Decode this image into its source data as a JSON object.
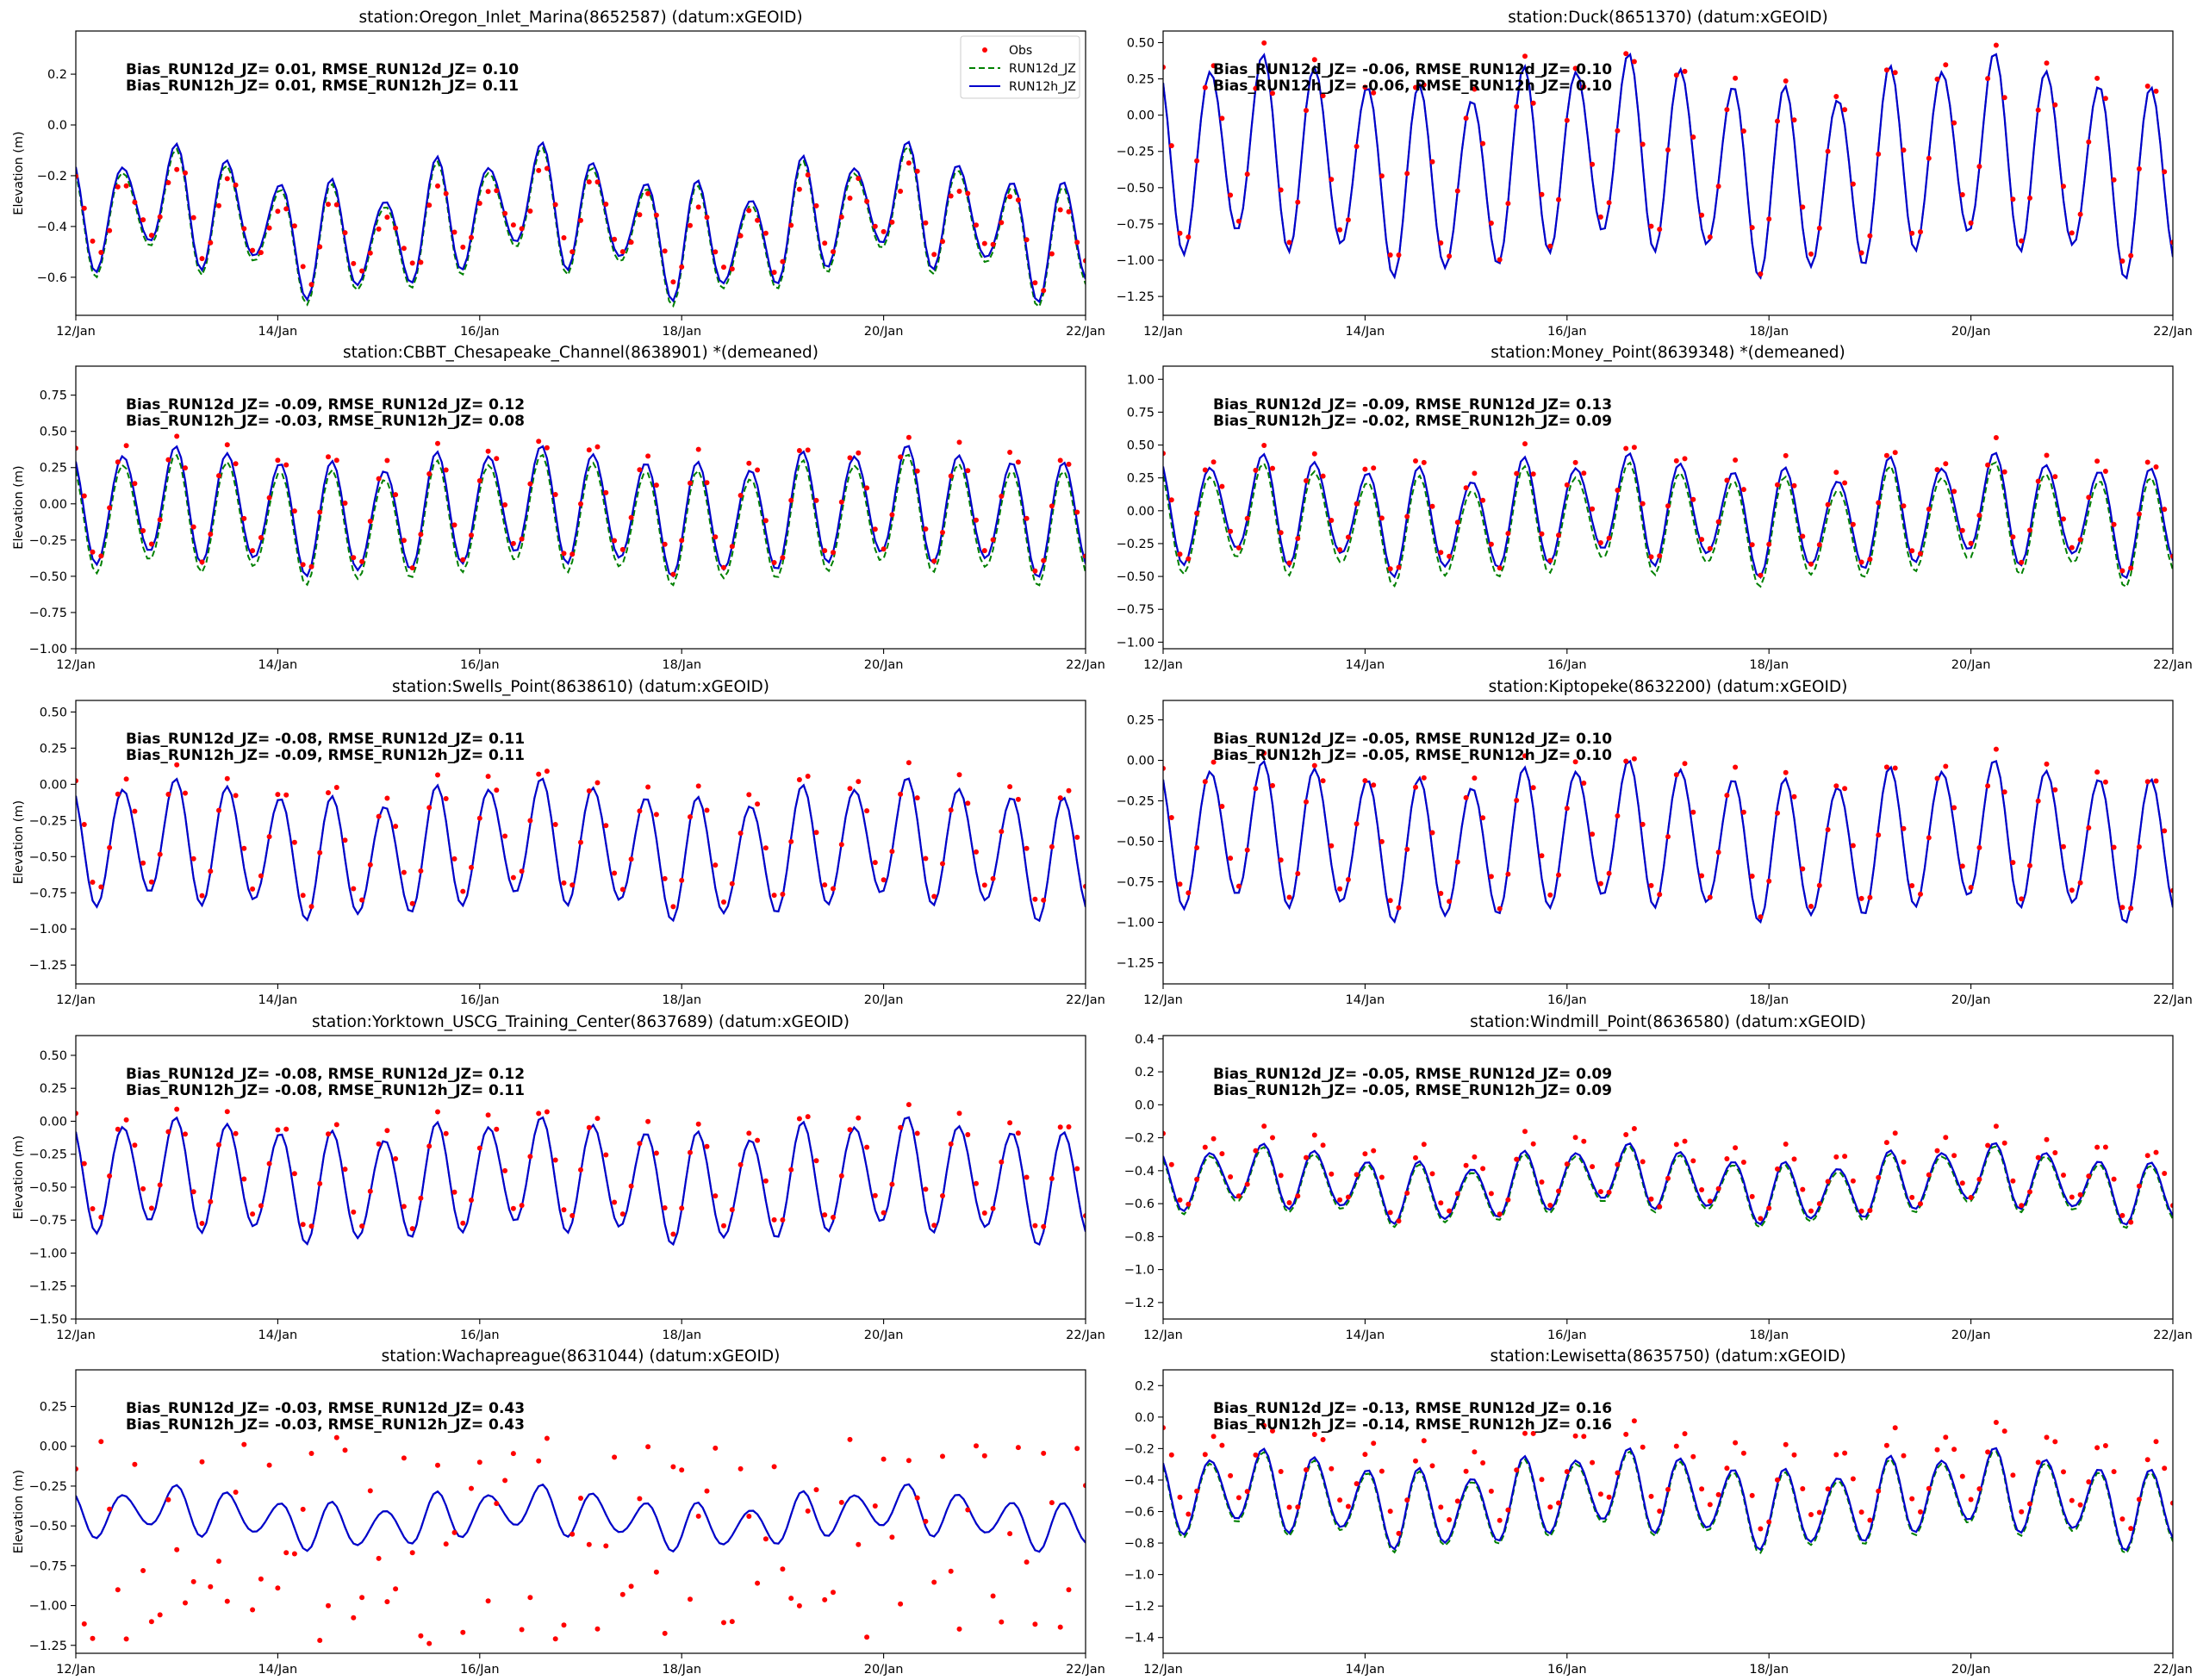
{
  "chart_data": [
    {
      "type": "line",
      "title": "station:Oregon_Inlet_Marina(8652587) (datum:xGEOID)",
      "ylabel": "Elevation (m)",
      "ylim": [
        -0.75,
        0.37
      ],
      "yticks": [
        -0.6,
        -0.4,
        -0.2,
        0.0,
        0.2
      ],
      "ytick_labels": [
        "−0.6",
        "−0.4",
        "−0.2",
        "0.0",
        "0.2"
      ],
      "stats_line1": "Bias_RUN12d_JZ=  0.01, RMSE_RUN12d_JZ=  0.10",
      "stats_line2": "Bias_RUN12h_JZ=  0.01, RMSE_RUN12h_JZ=  0.11",
      "show_legend": true,
      "model": {
        "mean": -0.38,
        "amp": 0.2,
        "damp": 0.3,
        "noise": 0.08,
        "tilt": 0.0,
        "t0": 12.0,
        "t1": 18.05,
        "gap": [
          0.06,
          0.06
        ],
        "gapRun": 0.02
      },
      "obs": {
        "offset": -0.01,
        "scale": 0.7,
        "noise": 0.06,
        "lag": 0.05
      }
    },
    {
      "type": "line",
      "title": "station:Duck(8651370) (datum:xGEOID)",
      "ylabel": "",
      "ylim": [
        -1.38,
        0.58
      ],
      "yticks": [
        -1.25,
        -1.0,
        -0.75,
        -0.5,
        -0.25,
        0.0,
        0.25,
        0.5
      ],
      "ytick_labels": [
        "−1.25",
        "−1.00",
        "−0.75",
        "−0.50",
        "−0.25",
        "0.00",
        "0.25",
        "0.50"
      ],
      "stats_line1": "Bias_RUN12d_JZ= -0.06, RMSE_RUN12d_JZ=  0.10",
      "stats_line2": "Bias_RUN12h_JZ= -0.06, RMSE_RUN12h_JZ=  0.10",
      "show_legend": false,
      "model": {
        "mean": -0.35,
        "amp": 0.62,
        "damp": 0.12,
        "noise": 0.12,
        "tilt": 0.0,
        "t0": 12.0,
        "t1": 18.55,
        "gap": [
          0.0,
          0.0
        ],
        "gapRun": 0.0
      },
      "obs": {
        "offset": 0.06,
        "scale": 1.0,
        "noise": 0.05,
        "lag": 0.02
      }
    },
    {
      "type": "line",
      "title": "station:CBBT_Chesapeake_Channel(8638901) *(demeaned)",
      "ylabel": "Elevation (m)",
      "ylim": [
        -1.0,
        0.95
      ],
      "yticks": [
        -1.0,
        -0.75,
        -0.5,
        -0.25,
        0.0,
        0.25,
        0.5,
        0.75
      ],
      "ytick_labels": [
        "−1.00",
        "−0.75",
        "−0.50",
        "−0.25",
        "0.00",
        "0.25",
        "0.50",
        "0.75"
      ],
      "stats_line1": "Bias_RUN12d_JZ= -0.09, RMSE_RUN12d_JZ=  0.12",
      "stats_line2": "Bias_RUN12h_JZ= -0.03, RMSE_RUN12h_JZ=  0.08",
      "show_legend": false,
      "model": {
        "mean": -0.05,
        "amp": 0.37,
        "damp": 0.12,
        "noise": 0.06,
        "tilt": 0.0,
        "t0": 12.0,
        "t1": 17.6,
        "gap": [
          0.06,
          0.0
        ],
        "gapRun": 0.06
      },
      "obs": {
        "offset": 0.05,
        "scale": 1.05,
        "noise": 0.05,
        "lag": 0.02
      }
    },
    {
      "type": "line",
      "title": "station:Money_Point(8639348) *(demeaned)",
      "ylabel": "",
      "ylim": [
        -1.05,
        1.1
      ],
      "yticks": [
        -1.0,
        -0.75,
        -0.5,
        -0.25,
        0.0,
        0.25,
        0.5,
        0.75,
        1.0
      ],
      "ytick_labels": [
        "−1.00",
        "−0.75",
        "−0.50",
        "−0.25",
        "0.00",
        "0.25",
        "0.50",
        "0.75",
        "1.00"
      ],
      "stats_line1": "Bias_RUN12d_JZ= -0.09, RMSE_RUN12d_JZ=  0.13",
      "stats_line2": "Bias_RUN12h_JZ= -0.02, RMSE_RUN12h_JZ=  0.09",
      "show_legend": false,
      "model": {
        "mean": -0.03,
        "amp": 0.37,
        "damp": 0.2,
        "noise": 0.06,
        "tilt": 0.0,
        "t0": 12.0,
        "t1": 17.6,
        "gap": [
          0.07,
          0.0
        ],
        "gapRun": 0.07
      },
      "obs": {
        "offset": 0.05,
        "scale": 1.08,
        "noise": 0.05,
        "lag": 0.02
      }
    },
    {
      "type": "line",
      "title": "station:Swells_Point(8638610) (datum:xGEOID)",
      "ylabel": "Elevation (m)",
      "ylim": [
        -1.38,
        0.58
      ],
      "yticks": [
        -1.25,
        -1.0,
        -0.75,
        -0.5,
        -0.25,
        0.0,
        0.25,
        0.5
      ],
      "ytick_labels": [
        "−1.25",
        "−1.00",
        "−0.75",
        "−0.50",
        "−0.25",
        "0.00",
        "0.25",
        "0.50"
      ],
      "stats_line1": "Bias_RUN12d_JZ= -0.08, RMSE_RUN12d_JZ=  0.11",
      "stats_line2": "Bias_RUN12h_JZ= -0.09, RMSE_RUN12h_JZ=  0.11",
      "show_legend": false,
      "model": {
        "mean": -0.45,
        "amp": 0.4,
        "damp": 0.12,
        "noise": 0.07,
        "tilt": 0.0,
        "t0": 12.0,
        "t1": 17.6,
        "gap": [
          0.0,
          0.0
        ],
        "gapRun": 0.0
      },
      "obs": {
        "offset": 0.08,
        "scale": 1.0,
        "noise": 0.05,
        "lag": 0.03
      }
    },
    {
      "type": "line",
      "title": "station:Kiptopeke(8632200) (datum:xGEOID)",
      "ylabel": "",
      "ylim": [
        -1.38,
        0.37
      ],
      "yticks": [
        -1.25,
        -1.0,
        -0.75,
        -0.5,
        -0.25,
        0.0,
        0.25
      ],
      "ytick_labels": [
        "−1.25",
        "−1.00",
        "−0.75",
        "−0.50",
        "−0.25",
        "0.00",
        "0.25"
      ],
      "stats_line1": "Bias_RUN12d_JZ= -0.05, RMSE_RUN12d_JZ=  0.10",
      "stats_line2": "Bias_RUN12h_JZ= -0.05, RMSE_RUN12h_JZ=  0.10",
      "show_legend": false,
      "model": {
        "mean": -0.5,
        "amp": 0.42,
        "damp": 0.1,
        "noise": 0.06,
        "tilt": 0.0,
        "t0": 12.0,
        "t1": 17.6,
        "gap": [
          0.0,
          0.0
        ],
        "gapRun": 0.0
      },
      "obs": {
        "offset": 0.05,
        "scale": 1.0,
        "noise": 0.05,
        "lag": 0.03
      }
    },
    {
      "type": "line",
      "title": "station:Yorktown_USCG_Training_Center(8637689) (datum:xGEOID)",
      "ylabel": "Elevation (m)",
      "ylim": [
        -1.5,
        0.65
      ],
      "yticks": [
        -1.5,
        -1.25,
        -1.0,
        -0.75,
        -0.5,
        -0.25,
        0.0,
        0.25,
        0.5
      ],
      "ytick_labels": [
        "−1.50",
        "−1.25",
        "−1.00",
        "−0.75",
        "−0.50",
        "−0.25",
        "0.00",
        "0.25",
        "0.50"
      ],
      "stats_line1": "Bias_RUN12d_JZ= -0.08, RMSE_RUN12d_JZ=  0.12",
      "stats_line2": "Bias_RUN12h_JZ= -0.08, RMSE_RUN12h_JZ=  0.11",
      "show_legend": false,
      "model": {
        "mean": -0.45,
        "amp": 0.4,
        "damp": 0.12,
        "noise": 0.06,
        "tilt": 0.0,
        "t0": 12.0,
        "t1": 17.6,
        "gap": [
          0.0,
          0.0
        ],
        "gapRun": 0.0
      },
      "obs": {
        "offset": 0.08,
        "scale": 1.0,
        "noise": 0.05,
        "lag": 0.03
      }
    },
    {
      "type": "line",
      "title": "station:Windmill_Point(8636580) (datum:xGEOID)",
      "ylabel": "",
      "ylim": [
        -1.3,
        0.42
      ],
      "yticks": [
        -1.2,
        -1.0,
        -0.8,
        -0.6,
        -0.4,
        -0.2,
        0.0,
        0.2,
        0.4
      ],
      "ytick_labels": [
        "−1.2",
        "−1.0",
        "−0.8",
        "−0.6",
        "−0.4",
        "−0.2",
        "0.0",
        "0.2",
        "0.4"
      ],
      "stats_line1": "Bias_RUN12d_JZ= -0.05, RMSE_RUN12d_JZ=  0.09",
      "stats_line2": "Bias_RUN12h_JZ= -0.05, RMSE_RUN12h_JZ=  0.09",
      "show_legend": false,
      "model": {
        "mean": -0.48,
        "amp": 0.17,
        "damp": 0.2,
        "noise": 0.06,
        "tilt": 0.0,
        "t0": 12.0,
        "t1": 17.6,
        "gap": [
          0.02,
          0.0
        ],
        "gapRun": 0.02
      },
      "obs": {
        "offset": 0.06,
        "scale": 1.2,
        "noise": 0.04,
        "lag": 0.05
      }
    },
    {
      "type": "line",
      "title": "station:Wachapreague(8631044) (datum:xGEOID)",
      "ylabel": "Elevation (m)",
      "ylim": [
        -1.3,
        0.48
      ],
      "yticks": [
        -1.25,
        -1.0,
        -0.75,
        -0.5,
        -0.25,
        0.0,
        0.25
      ],
      "ytick_labels": [
        "−1.25",
        "−1.00",
        "−0.75",
        "−0.50",
        "−0.25",
        "0.00",
        "0.25"
      ],
      "stats_line1": "Bias_RUN12d_JZ= -0.03, RMSE_RUN12d_JZ=  0.43",
      "stats_line2": "Bias_RUN12h_JZ= -0.03, RMSE_RUN12h_JZ=  0.43",
      "show_legend": false,
      "model": {
        "mean": -0.45,
        "amp": 0.13,
        "damp": 0.3,
        "noise": 0.06,
        "tilt": 0.0,
        "t0": 12.0,
        "t1": 17.6,
        "gap": [
          0.0,
          0.0
        ],
        "gapRun": 0.0
      },
      "obs": {
        "offset": -0.15,
        "scale": 5.0,
        "noise": 0.1,
        "lag": 0.15
      }
    },
    {
      "type": "line",
      "title": "station:Lewisetta(8635750) (datum:xGEOID)",
      "ylabel": "",
      "ylim": [
        -1.5,
        0.3
      ],
      "yticks": [
        -1.4,
        -1.2,
        -1.0,
        -0.8,
        -0.6,
        -0.4,
        -0.2,
        0.0,
        0.2
      ],
      "ytick_labels": [
        "−1.4",
        "−1.2",
        "−1.0",
        "−0.8",
        "−0.6",
        "−0.4",
        "−0.2",
        "0.0",
        "0.2"
      ],
      "stats_line1": "Bias_RUN12d_JZ= -0.13, RMSE_RUN12d_JZ=  0.16",
      "stats_line2": "Bias_RUN12h_JZ= -0.14, RMSE_RUN12h_JZ=  0.16",
      "show_legend": false,
      "model": {
        "mean": -0.52,
        "amp": 0.23,
        "damp": 0.2,
        "noise": 0.07,
        "tilt": 0.0,
        "t0": 12.0,
        "t1": 17.6,
        "gap": [
          0.02,
          0.0
        ],
        "gapRun": 0.02
      },
      "obs": {
        "offset": 0.15,
        "scale": 1.1,
        "noise": 0.04,
        "lag": 0.08
      }
    }
  ],
  "x_axis": {
    "xlim": [
      12,
      22
    ],
    "ticks": [
      12,
      14,
      16,
      18,
      20,
      22
    ],
    "tick_labels": [
      "12/Jan",
      "14/Jan",
      "16/Jan",
      "18/Jan",
      "20/Jan",
      "22/Jan"
    ]
  },
  "legend": {
    "entries": [
      {
        "label": "Obs",
        "color": "#ff0000",
        "style": "dots"
      },
      {
        "label": "RUN12d_JZ",
        "color": "#008000",
        "style": "dashed"
      },
      {
        "label": "RUN12h_JZ",
        "color": "#0000cc",
        "style": "solid"
      }
    ]
  },
  "colors": {
    "obs": "#ff0000",
    "run12d": "#008000",
    "run12h": "#0000cc"
  }
}
